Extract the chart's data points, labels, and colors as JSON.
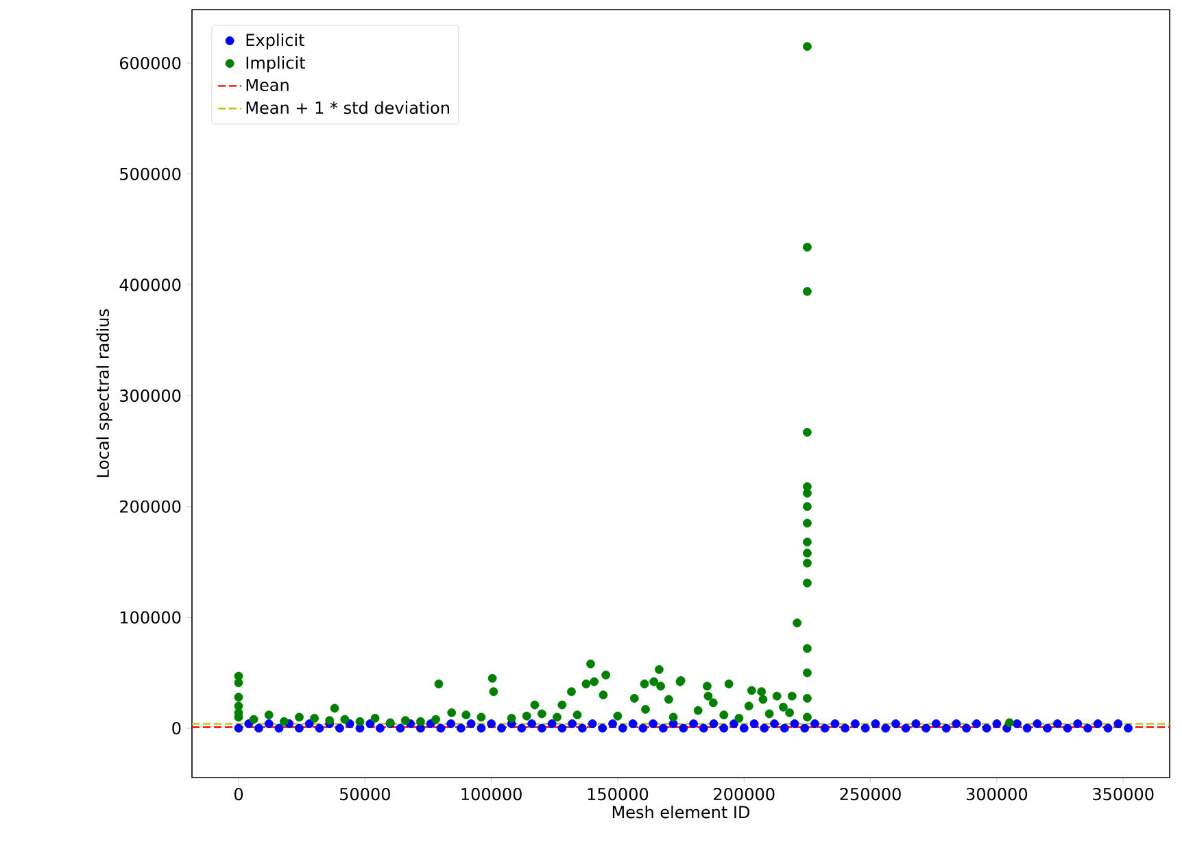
{
  "chart_data": {
    "type": "scatter",
    "xlabel": "Mesh element ID",
    "ylabel": "Local spectral radius",
    "xlim": [
      -18450,
      368400
    ],
    "ylim": [
      -44500,
      648300
    ],
    "xticks": [
      0,
      50000,
      100000,
      150000,
      200000,
      250000,
      300000,
      350000
    ],
    "yticks": [
      0,
      100000,
      200000,
      300000,
      400000,
      500000,
      600000
    ],
    "grid": false,
    "legend": "top left",
    "marker": "circle",
    "series": [
      {
        "name": "Explicit",
        "color": "#0000ff",
        "x": [
          0,
          8000,
          16000,
          24000,
          32000,
          40000,
          48000,
          56000,
          64000,
          72000,
          80000,
          88000,
          96000,
          104000,
          112000,
          120000,
          128000,
          136000,
          144000,
          152000,
          160000,
          168000,
          176000,
          184000,
          192000,
          200000,
          208000,
          216000,
          224000,
          232000,
          240000,
          248000,
          256000,
          264000,
          272000,
          280000,
          288000,
          296000,
          304000,
          312000,
          320000,
          328000,
          336000,
          344000,
          352000,
          4000,
          12000,
          20000,
          28000,
          36000,
          44000,
          52000,
          60000,
          68000,
          76000,
          84000,
          92000,
          100000,
          108000,
          116000,
          124000,
          132000,
          140000,
          148000,
          156000,
          164000,
          172000,
          180000,
          188000,
          196000,
          204000,
          212000,
          220000,
          228000,
          236000,
          244000,
          252000,
          260000,
          268000,
          276000,
          284000,
          292000,
          300000,
          308000,
          316000,
          324000,
          332000,
          340000,
          348000
        ],
        "values": [
          0,
          0,
          0,
          0,
          0,
          0,
          0,
          0,
          0,
          0,
          0,
          0,
          0,
          0,
          0,
          0,
          0,
          0,
          0,
          0,
          0,
          0,
          0,
          0,
          0,
          0,
          0,
          0,
          0,
          0,
          0,
          0,
          0,
          0,
          0,
          0,
          0,
          0,
          0,
          0,
          0,
          0,
          0,
          0,
          0,
          4000,
          4000,
          4000,
          4000,
          4000,
          4000,
          4000,
          4000,
          4000,
          4000,
          4000,
          4000,
          4000,
          4000,
          4000,
          4000,
          4000,
          4000,
          4000,
          4000,
          4000,
          4000,
          4000,
          4000,
          4000,
          4000,
          4000,
          4000,
          4000,
          4000,
          4000,
          4000,
          4000,
          4000,
          4000,
          4000,
          4000,
          4000,
          4000,
          4000,
          4000,
          4000,
          4000,
          4000
        ]
      },
      {
        "name": "Implicit",
        "color": "#008000",
        "x": [
          0,
          0,
          0,
          0,
          0,
          0,
          38000,
          79200,
          84300,
          100400,
          100900,
          117200,
          128000,
          131700,
          139300,
          137500,
          140700,
          145300,
          144300,
          156600,
          161000,
          160600,
          166400,
          164300,
          167000,
          170200,
          174700,
          175000,
          181800,
          185400,
          185800,
          187800,
          194000,
          203000,
          201900,
          206900,
          207500,
          213000,
          215500,
          219000,
          221000,
          225000,
          225000,
          225000,
          225000,
          225000,
          225000,
          225000,
          225000,
          225000,
          225000,
          225000,
          225000,
          225000,
          225000,
          225000,
          225000,
          6000,
          12000,
          18000,
          24000,
          30000,
          36000,
          42000,
          48000,
          54000,
          60000,
          66000,
          72000,
          78000,
          90000,
          96000,
          108000,
          114000,
          120000,
          126000,
          134000,
          150000,
          172000,
          192000,
          198000,
          210000,
          218000,
          305000
        ],
        "values": [
          47000,
          41000,
          28000,
          20000,
          14000,
          10000,
          18000,
          40000,
          14000,
          45000,
          33000,
          21000,
          21000,
          33000,
          58000,
          40000,
          42000,
          48000,
          30000,
          27000,
          17000,
          40000,
          53000,
          42000,
          38000,
          26000,
          42000,
          43000,
          16000,
          38000,
          29000,
          23000,
          40000,
          34000,
          20000,
          33000,
          26000,
          29000,
          19000,
          29000,
          95000,
          615000,
          434000,
          394000,
          267000,
          218000,
          212000,
          200000,
          185000,
          168000,
          158000,
          149000,
          131000,
          72000,
          50000,
          27000,
          10000,
          8000,
          12000,
          6000,
          10000,
          9000,
          7000,
          8000,
          6000,
          9000,
          5000,
          7000,
          6000,
          8000,
          12000,
          10000,
          9000,
          11000,
          13000,
          10000,
          12000,
          11000,
          10000,
          12000,
          9000,
          13000,
          14000,
          5000
        ]
      }
    ],
    "ref_lines": [
      {
        "axis": "y",
        "value": 1000,
        "label": "Mean",
        "color": "#ff0000",
        "line_style": "dashed"
      },
      {
        "axis": "y",
        "value": 4000,
        "label": "Mean + 1 * std deviation",
        "color": "#bfbf00",
        "line_style": "dashed"
      }
    ]
  }
}
